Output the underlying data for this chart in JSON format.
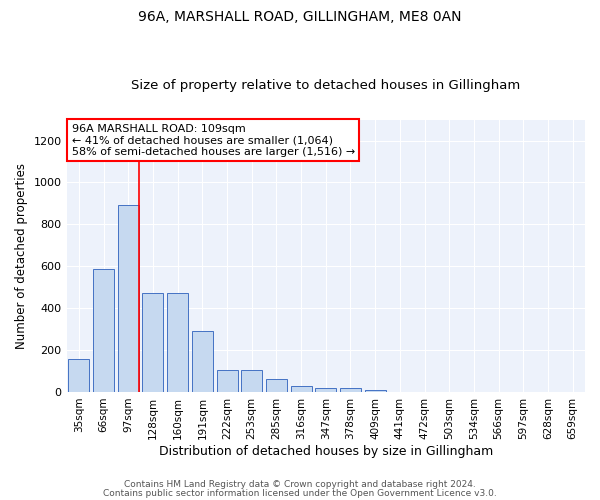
{
  "title1": "96A, MARSHALL ROAD, GILLINGHAM, ME8 0AN",
  "title2": "Size of property relative to detached houses in Gillingham",
  "xlabel": "Distribution of detached houses by size in Gillingham",
  "ylabel": "Number of detached properties",
  "bin_labels": [
    "35sqm",
    "66sqm",
    "97sqm",
    "128sqm",
    "160sqm",
    "191sqm",
    "222sqm",
    "253sqm",
    "285sqm",
    "316sqm",
    "347sqm",
    "378sqm",
    "409sqm",
    "441sqm",
    "472sqm",
    "503sqm",
    "534sqm",
    "566sqm",
    "597sqm",
    "628sqm",
    "659sqm"
  ],
  "bar_heights": [
    155,
    588,
    890,
    470,
    470,
    293,
    105,
    105,
    60,
    27,
    18,
    18,
    10,
    0,
    0,
    0,
    0,
    0,
    0,
    0,
    0
  ],
  "bar_color": "#c6d9f0",
  "bar_edge_color": "#4472c4",
  "vline_x": 2.45,
  "vline_color": "red",
  "annotation_text": "96A MARSHALL ROAD: 109sqm\n← 41% of detached houses are smaller (1,064)\n58% of semi-detached houses are larger (1,516) →",
  "annotation_box_color": "white",
  "annotation_box_edge_color": "red",
  "ylim": [
    0,
    1300
  ],
  "yticks": [
    0,
    200,
    400,
    600,
    800,
    1000,
    1200
  ],
  "footer_line1": "Contains HM Land Registry data © Crown copyright and database right 2024.",
  "footer_line2": "Contains public sector information licensed under the Open Government Licence v3.0.",
  "plot_bg_color": "#edf2fb",
  "title1_fontsize": 10,
  "title2_fontsize": 9.5,
  "xlabel_fontsize": 9,
  "ylabel_fontsize": 8.5,
  "footer_fontsize": 6.5,
  "annotation_fontsize": 8,
  "tick_fontsize": 7.5,
  "ytick_fontsize": 8
}
